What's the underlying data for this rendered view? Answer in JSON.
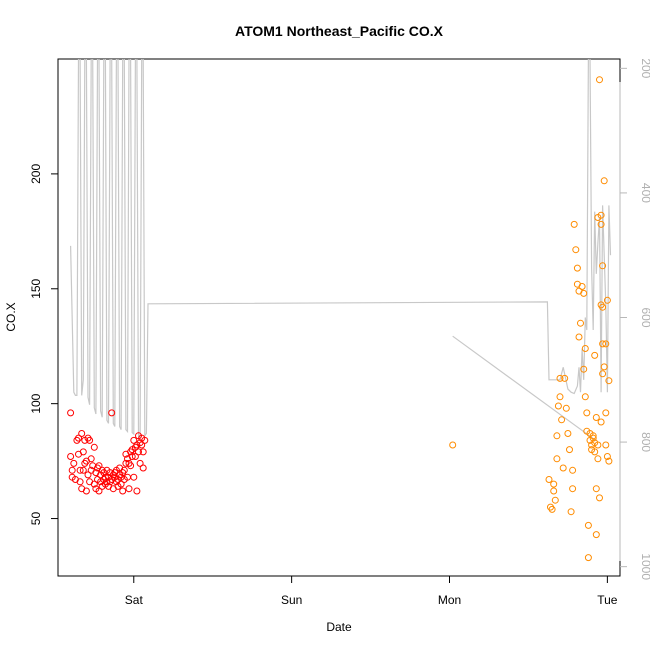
{
  "chart_data": {
    "type": "scatter",
    "title": "ATOM1 Northeast_Pacific CO.X",
    "xlabel": "Date",
    "ylabel": "CO.X",
    "x_unit": "days",
    "x_ticks": [
      {
        "value": 1,
        "label": "Sat"
      },
      {
        "value": 2,
        "label": "Sun"
      },
      {
        "value": 3,
        "label": "Mon"
      },
      {
        "value": 4,
        "label": "Tue"
      }
    ],
    "xlim": [
      0.52,
      4.08
    ],
    "ylim": [
      25,
      250
    ],
    "y_ticks": [
      50,
      100,
      150,
      200
    ],
    "y2_ticks": [
      200,
      400,
      600,
      800,
      1000
    ],
    "y2lim": [
      1015,
      185
    ],
    "grid": false,
    "series": [
      {
        "color": "#ff0000",
        "marker": "open-circle",
        "points": [
          [
            0.6,
            96
          ],
          [
            0.6,
            77
          ],
          [
            0.61,
            71
          ],
          [
            0.61,
            68
          ],
          [
            0.62,
            74
          ],
          [
            0.63,
            67
          ],
          [
            0.64,
            84
          ],
          [
            0.65,
            85
          ],
          [
            0.65,
            78
          ],
          [
            0.66,
            71
          ],
          [
            0.66,
            66
          ],
          [
            0.67,
            87
          ],
          [
            0.67,
            63
          ],
          [
            0.68,
            79
          ],
          [
            0.68,
            71
          ],
          [
            0.69,
            74
          ],
          [
            0.69,
            84
          ],
          [
            0.7,
            75
          ],
          [
            0.7,
            62
          ],
          [
            0.71,
            85
          ],
          [
            0.71,
            69
          ],
          [
            0.72,
            84
          ],
          [
            0.72,
            66
          ],
          [
            0.73,
            71
          ],
          [
            0.73,
            76
          ],
          [
            0.74,
            73
          ],
          [
            0.75,
            81
          ],
          [
            0.75,
            65
          ],
          [
            0.76,
            70
          ],
          [
            0.76,
            63
          ],
          [
            0.77,
            72
          ],
          [
            0.77,
            67
          ],
          [
            0.78,
            73
          ],
          [
            0.78,
            62
          ],
          [
            0.79,
            69
          ],
          [
            0.79,
            66
          ],
          [
            0.8,
            71
          ],
          [
            0.8,
            64
          ],
          [
            0.81,
            67
          ],
          [
            0.81,
            70
          ],
          [
            0.82,
            65
          ],
          [
            0.82,
            68
          ],
          [
            0.83,
            66
          ],
          [
            0.83,
            71
          ],
          [
            0.84,
            68
          ],
          [
            0.84,
            64
          ],
          [
            0.85,
            70
          ],
          [
            0.85,
            66
          ],
          [
            0.86,
            67
          ],
          [
            0.86,
            96
          ],
          [
            0.87,
            69
          ],
          [
            0.87,
            63
          ],
          [
            0.88,
            68
          ],
          [
            0.88,
            70
          ],
          [
            0.89,
            66
          ],
          [
            0.89,
            71
          ],
          [
            0.9,
            67
          ],
          [
            0.9,
            64
          ],
          [
            0.91,
            69
          ],
          [
            0.91,
            72
          ],
          [
            0.92,
            68
          ],
          [
            0.92,
            65
          ],
          [
            0.93,
            70
          ],
          [
            0.93,
            62
          ],
          [
            0.94,
            71
          ],
          [
            0.94,
            67
          ],
          [
            0.95,
            74
          ],
          [
            0.95,
            78
          ],
          [
            0.96,
            76
          ],
          [
            0.96,
            68
          ],
          [
            0.97,
            74
          ],
          [
            0.97,
            63
          ],
          [
            0.98,
            79
          ],
          [
            0.98,
            73
          ],
          [
            0.99,
            77
          ],
          [
            0.99,
            80
          ],
          [
            1.0,
            84
          ],
          [
            1.0,
            68
          ],
          [
            1.01,
            77
          ],
          [
            1.01,
            81
          ],
          [
            1.02,
            82
          ],
          [
            1.02,
            62
          ],
          [
            1.03,
            86
          ],
          [
            1.03,
            79
          ],
          [
            1.04,
            83
          ],
          [
            1.04,
            74
          ],
          [
            1.05,
            82
          ],
          [
            1.05,
            85
          ],
          [
            1.06,
            79
          ],
          [
            1.06,
            72
          ],
          [
            1.07,
            84
          ]
        ]
      },
      {
        "color": "#ff8c00",
        "marker": "open-circle",
        "points": [
          [
            3.02,
            82
          ],
          [
            3.63,
            67
          ],
          [
            3.64,
            55
          ],
          [
            3.65,
            54
          ],
          [
            3.66,
            62
          ],
          [
            3.66,
            65
          ],
          [
            3.67,
            58
          ],
          [
            3.68,
            76
          ],
          [
            3.68,
            86
          ],
          [
            3.69,
            99
          ],
          [
            3.7,
            103
          ],
          [
            3.7,
            111
          ],
          [
            3.71,
            93
          ],
          [
            3.72,
            72
          ],
          [
            3.73,
            111
          ],
          [
            3.74,
            98
          ],
          [
            3.75,
            87
          ],
          [
            3.76,
            80
          ],
          [
            3.77,
            53
          ],
          [
            3.78,
            63
          ],
          [
            3.78,
            71
          ],
          [
            3.79,
            178
          ],
          [
            3.8,
            167
          ],
          [
            3.81,
            159
          ],
          [
            3.81,
            152
          ],
          [
            3.82,
            149
          ],
          [
            3.82,
            129
          ],
          [
            3.83,
            135
          ],
          [
            3.84,
            151
          ],
          [
            3.85,
            148
          ],
          [
            3.85,
            115
          ],
          [
            3.86,
            124
          ],
          [
            3.86,
            103
          ],
          [
            3.87,
            96
          ],
          [
            3.87,
            88
          ],
          [
            3.88,
            47
          ],
          [
            3.88,
            33
          ],
          [
            3.89,
            87
          ],
          [
            3.89,
            84
          ],
          [
            3.9,
            82
          ],
          [
            3.9,
            80
          ],
          [
            3.91,
            85
          ],
          [
            3.91,
            86
          ],
          [
            3.92,
            83
          ],
          [
            3.92,
            79
          ],
          [
            3.93,
            94
          ],
          [
            3.93,
            63
          ],
          [
            3.94,
            76
          ],
          [
            3.94,
            82
          ],
          [
            3.95,
            241
          ],
          [
            3.95,
            59
          ],
          [
            3.96,
            182
          ],
          [
            3.96,
            178
          ],
          [
            3.97,
            160
          ],
          [
            3.97,
            142
          ],
          [
            3.97,
            126
          ],
          [
            3.98,
            197
          ],
          [
            3.98,
            116
          ],
          [
            3.99,
            96
          ],
          [
            3.99,
            82
          ],
          [
            4.0,
            77
          ],
          [
            4.0,
            145
          ],
          [
            4.01,
            110
          ],
          [
            4.01,
            75
          ],
          [
            3.97,
            113
          ],
          [
            3.94,
            181
          ],
          [
            3.96,
            143
          ],
          [
            3.92,
            121
          ],
          [
            3.93,
            43
          ],
          [
            3.96,
            92
          ],
          [
            3.99,
            126
          ]
        ]
      },
      {
        "name_axis": "right",
        "color": "#c8c8c8",
        "type": "line",
        "segments": [
          [
            [
              0.6,
              485
            ],
            [
              0.62,
              720
            ],
            [
              0.63,
              725
            ],
            [
              0.64,
              725
            ],
            [
              0.65,
              180
            ],
            [
              0.66,
              180
            ],
            [
              0.67,
              725
            ],
            [
              0.68,
              700
            ],
            [
              0.69,
              180
            ],
            [
              0.7,
              180
            ],
            [
              0.71,
              728
            ],
            [
              0.72,
              740
            ],
            [
              0.73,
              180
            ],
            [
              0.74,
              180
            ],
            [
              0.75,
              745
            ],
            [
              0.76,
              755
            ],
            [
              0.77,
              180
            ],
            [
              0.78,
              180
            ],
            [
              0.79,
              750
            ],
            [
              0.8,
              760
            ],
            [
              0.81,
              180
            ],
            [
              0.82,
              180
            ],
            [
              0.83,
              765
            ],
            [
              0.84,
              770
            ],
            [
              0.85,
              180
            ],
            [
              0.86,
              180
            ],
            [
              0.87,
              770
            ],
            [
              0.88,
              775
            ],
            [
              0.89,
              180
            ],
            [
              0.9,
              180
            ],
            [
              0.91,
              775
            ],
            [
              0.92,
              780
            ],
            [
              0.93,
              180
            ],
            [
              0.94,
              180
            ],
            [
              0.95,
              780
            ],
            [
              0.96,
              783
            ],
            [
              0.97,
              180
            ],
            [
              0.98,
              180
            ],
            [
              0.99,
              785
            ],
            [
              1.0,
              787
            ],
            [
              1.01,
              180
            ],
            [
              1.02,
              180
            ],
            [
              1.03,
              790
            ],
            [
              1.04,
              795
            ],
            [
              1.05,
              180
            ],
            [
              1.06,
              180
            ],
            [
              1.07,
              790
            ],
            [
              1.08,
              786
            ],
            [
              1.09,
              578
            ],
            [
              3.62,
              575
            ],
            [
              3.63,
              700
            ],
            [
              3.7,
              700
            ],
            [
              3.72,
              680
            ],
            [
              3.75,
              715
            ],
            [
              3.77,
              720
            ],
            [
              3.79,
              722
            ],
            [
              3.81,
              710
            ],
            [
              3.82,
              680
            ],
            [
              3.83,
              720
            ],
            [
              3.84,
              650
            ],
            [
              3.85,
              700
            ],
            [
              3.86,
              600
            ],
            [
              3.87,
              620
            ],
            [
              3.88,
              180
            ],
            [
              3.89,
              180
            ],
            [
              3.9,
              520
            ],
            [
              3.91,
              620
            ],
            [
              3.92,
              430
            ],
            [
              3.93,
              530
            ],
            [
              3.94,
              480
            ],
            [
              3.95,
              440
            ],
            [
              3.96,
              720
            ],
            [
              3.97,
              420
            ],
            [
              3.98,
              500
            ],
            [
              3.99,
              580
            ],
            [
              4.0,
              720
            ],
            [
              4.01,
              420
            ],
            [
              4.02,
              500
            ]
          ],
          [
            [
              3.02,
              630
            ],
            [
              3.93,
              798
            ]
          ]
        ]
      }
    ]
  }
}
